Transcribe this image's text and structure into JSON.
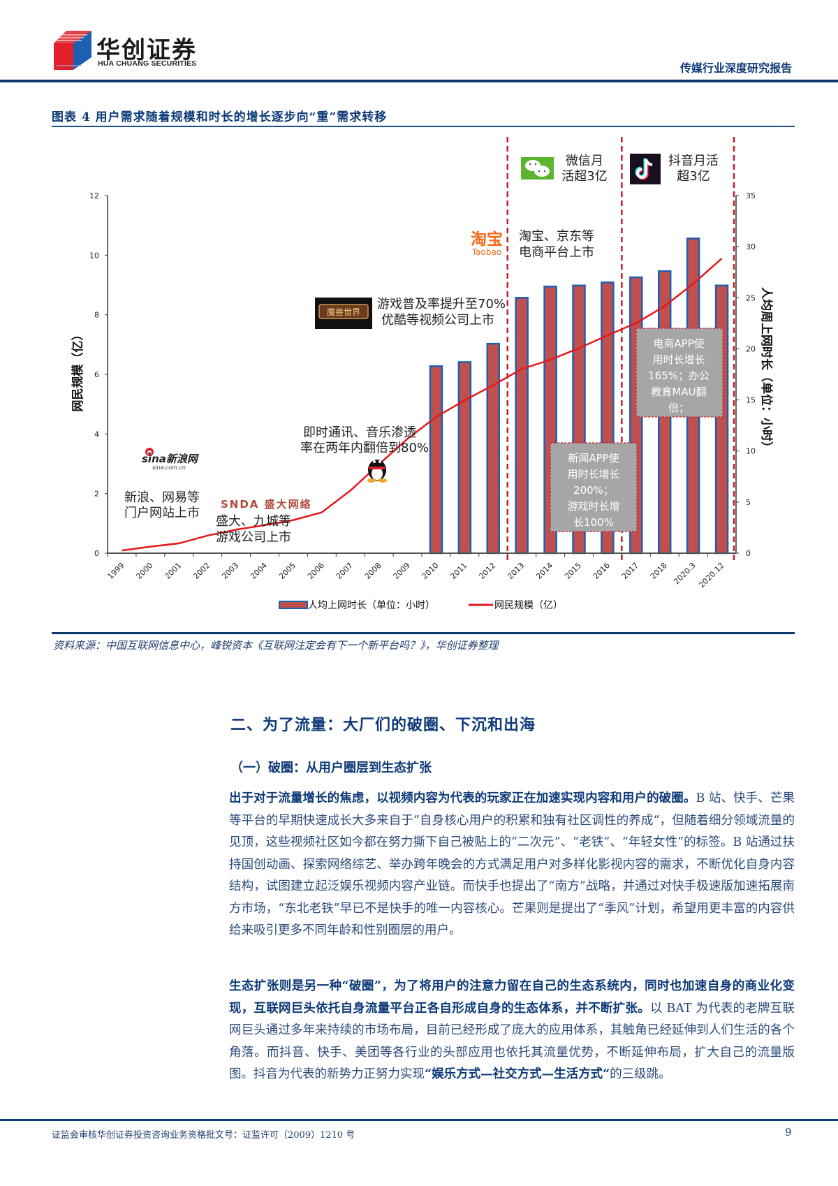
{
  "header": {
    "logo_cn": "华创证券",
    "logo_en": "HUA CHUANG SECURITIES",
    "report_type": "传媒行业深度研究报告",
    "logo_colors": {
      "red": "#e0202a",
      "blue": "#1f5fb0"
    }
  },
  "figure": {
    "title": "图表 4   用户需求随着规模和时长的增长逐步向“重”需求转移",
    "left_axis_label": "网民规模（亿）",
    "right_axis_label": "人均周上网时长（单位：小时）",
    "legend": {
      "bar": "人均上网时长（单位：小时）",
      "line": "网民规模（亿）"
    },
    "annotations": {
      "portal": [
        "新浪、网易等",
        "门户网站上市"
      ],
      "sina_logo": [
        "sina新浪网",
        "sina.com.cn"
      ],
      "snda_logo": "SNDA 盛大网络",
      "games": [
        "盛大、九城等",
        "游戏公司上市"
      ],
      "im_music": [
        "即时通讯、音乐渗透",
        "率在两年内翻倍到80%"
      ],
      "wow_logo": "魔兽世界",
      "game_video": [
        "游戏普及率提升至70%",
        "优酷等视频公司上市"
      ],
      "taobao_logo": [
        "淘宝",
        "Taobao"
      ],
      "ecommerce": [
        "淘宝、京东等",
        "电商平台上市"
      ],
      "wechat": [
        "微信月",
        "活超3亿"
      ],
      "douyin": [
        "抖音月活",
        "超3亿"
      ],
      "news_box": [
        "新闻APP使",
        "用时长增长",
        "200%；",
        "游戏时长增",
        "长100%"
      ],
      "ecom_box": [
        "电商APP使",
        "用时长增长",
        "165%；办公",
        "教育MAU翻",
        "倍；"
      ]
    },
    "source": "资料来源：中国互联网信息中心，峰锐资本《互联网注定会有下一个新平台吗？》，华创证券整理"
  },
  "chart_data": {
    "type": "bar+line",
    "title": "用户需求随着规模和时长的增长逐步向“重”需求转移",
    "categories": [
      "1999",
      "2000",
      "2001",
      "2002",
      "2003",
      "2004",
      "2005",
      "2006",
      "2007",
      "2008",
      "2009",
      "2010",
      "2011",
      "2012",
      "2013",
      "2014",
      "2015",
      "2016",
      "2017",
      "2018",
      "2020.3",
      "2020.12"
    ],
    "series": [
      {
        "name": "人均上网时长（单位：小时）",
        "type": "bar",
        "axis": "right",
        "color": "#c0504d",
        "values": [
          null,
          null,
          null,
          null,
          null,
          null,
          null,
          null,
          null,
          null,
          null,
          18.3,
          18.7,
          20.5,
          25.0,
          26.1,
          26.2,
          26.5,
          27.0,
          27.6,
          30.8,
          26.2
        ]
      },
      {
        "name": "网民规模（亿）",
        "type": "line",
        "axis": "left",
        "color": "#e31a1c",
        "values": [
          0.09,
          0.22,
          0.33,
          0.59,
          0.79,
          0.94,
          1.11,
          1.37,
          2.1,
          2.98,
          3.84,
          4.57,
          5.13,
          5.64,
          6.18,
          6.49,
          6.88,
          7.31,
          7.72,
          8.29,
          9.04,
          9.89
        ]
      }
    ],
    "ylabel_left": "网民规模（亿）",
    "ylim_left": [
      0,
      12
    ],
    "yticks_left": [
      0,
      2,
      4,
      6,
      8,
      10,
      12
    ],
    "ylabel_right": "人均周上网时长（单位：小时）",
    "ylim_right": [
      0,
      35
    ],
    "yticks_right": [
      0,
      5,
      10,
      15,
      20,
      25,
      30,
      35
    ],
    "legend_position": "bottom",
    "grid": false,
    "dividers_after": [
      "2012",
      "2016",
      "2020.12"
    ]
  },
  "body": {
    "h2": "二、为了流量：大厂们的破圈、下沉和出海",
    "h3": "（一）破圈：从用户圈层到生态扩张",
    "p1_bold": "出于对于流量增长的焦虑，以视频内容为代表的玩家正在加速实现内容和用户的破圈。",
    "p1_text": "B 站、快手、芒果等平台的早期快速成长大多来自于“自身核心用户的积累和独有社区调性的养成“，但随着细分领域流量的见顶，这些视频社区如今都在努力撕下自己被贴上的“二次元”、“老铁”、“年轻女性”的标签。B 站通过扶持国创动画、探索网络综艺、举办跨年晚会的方式满足用户对多样化影视内容的需求，不断优化自身内容结构，试图建立起泛娱乐视频内容产业链。而快手也提出了“南方”战略，并通过对快手极速版加速拓展南方市场，“东北老铁”早已不是快手的唯一内容核心。芒果则是提出了“季风”计划，希望用更丰富的内容供给来吸引更多不同年龄和性别圈层的用户。",
    "p2_bold": "生态扩张则是另一种“破圈”，为了将用户的注意力留在自己的生态系统内，同时也加速自身的商业化变现，互联网巨头依托自身流量平台正各自形成自身的生态体系，并不断扩张。",
    "p2_text": "以 BAT 为代表的老牌互联网巨头通过多年来持续的市场布局，目前已经形成了庞大的应用体系，其触角已经延伸到人们生活的各个角落。而抖音、快手、美团等各行业的头部应用也依托其流量优势，不断延伸布局，扩大自己的流量版图。抖音为代表的新势力正努力实现",
    "p2_bold2": "“娱乐方式—社交方式—生活方式“",
    "p2_tail": "的三级跳。"
  },
  "footer": {
    "license": "证监会审核华创证券投资咨询业务资格批文号：证监许可（2009）1210 号",
    "page": "9"
  }
}
